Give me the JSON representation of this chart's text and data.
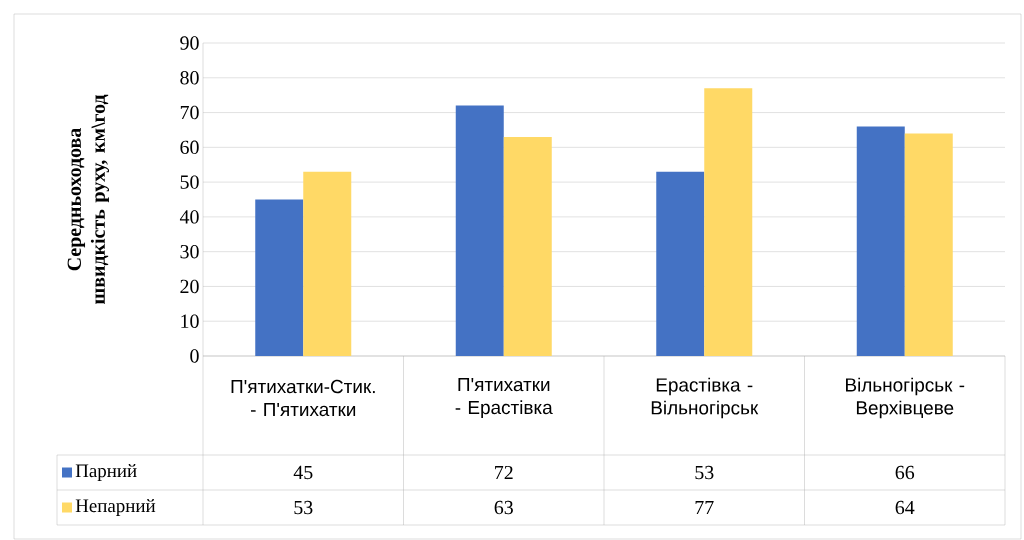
{
  "chart_data": {
    "type": "bar",
    "ylabel": "Середньоходова швидкість руху, км\\год",
    "categories": [
      "П'ятихатки-Стик. - П'ятихатки",
      "П'ятихатки - Ерастівка",
      "Ерастівка - Вільногірськ",
      "Вільногірськ - Верхівцеве"
    ],
    "series": [
      {
        "name": "Парний",
        "color": "#4472c4",
        "values": [
          45,
          72,
          53,
          66
        ]
      },
      {
        "name": "Непарний",
        "color": "#ffd966",
        "values": [
          53,
          63,
          77,
          64
        ]
      }
    ],
    "ylim": [
      0,
      90
    ],
    "yticks": [
      0,
      10,
      20,
      30,
      40,
      50,
      60,
      70,
      80,
      90
    ],
    "grid": "y",
    "data_labels": true,
    "legend": "bottom left"
  }
}
